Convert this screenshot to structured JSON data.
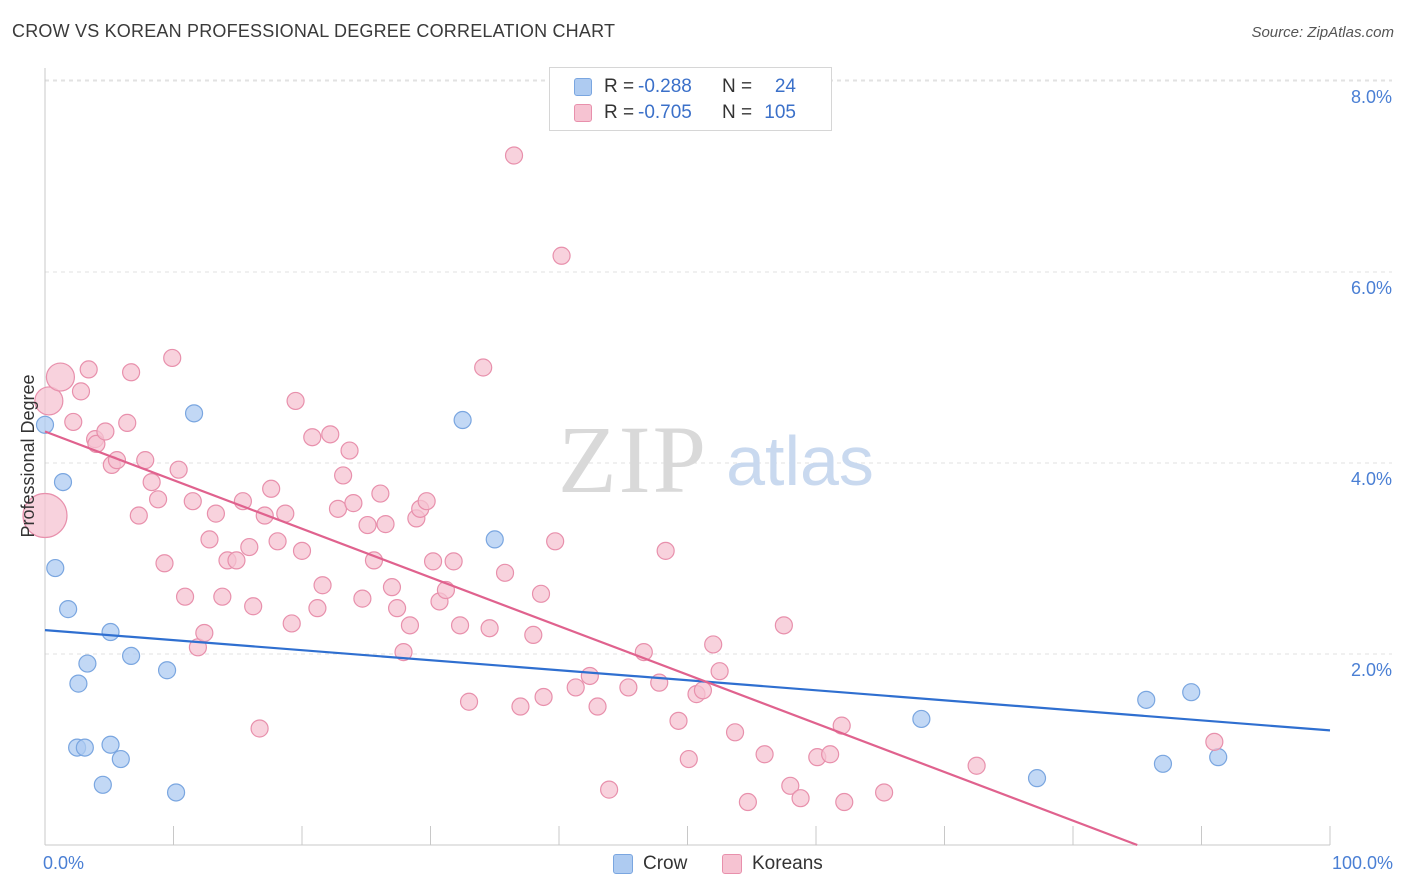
{
  "header": {
    "title": "CROW VS KOREAN PROFESSIONAL DEGREE CORRELATION CHART",
    "source": "Source: ZipAtlas.com"
  },
  "watermark": {
    "zip": "ZIP",
    "atlas": "atlas"
  },
  "legend": {
    "rows": [
      {
        "r_label": "R =",
        "r_value": "-0.288",
        "n_label": "N =",
        "n_value": "24"
      },
      {
        "r_label": "R =",
        "r_value": "-0.705",
        "n_label": "N =",
        "n_value": "105"
      }
    ]
  },
  "bottom_legend": {
    "crow": "Crow",
    "koreans": "Koreans"
  },
  "colors": {
    "crow_fill": "#aecbf1",
    "crow_stroke": "#7aa6e0",
    "crow_line": "#2f6fd0",
    "korean_fill": "#f6c3d2",
    "korean_stroke": "#e890ac",
    "korean_line": "#e0628e",
    "accent_text": "#4a7fd4"
  },
  "chart_data": {
    "type": "scatter",
    "title": "CROW VS KOREAN PROFESSIONAL DEGREE CORRELATION CHART",
    "xlabel": "",
    "ylabel": "Professional Degree",
    "xlim": [
      0,
      100
    ],
    "ylim": [
      0,
      8.2
    ],
    "x_tick_labels": [
      "0.0%",
      "100.0%"
    ],
    "y_ticks": [
      2,
      4,
      6,
      8
    ],
    "y_tick_labels": [
      "2.0%",
      "4.0%",
      "6.0%",
      "8.0%"
    ],
    "grid": "horizontal dashed",
    "legend_position": "top-center",
    "series": [
      {
        "name": "Crow",
        "r": -0.288,
        "n": 24,
        "trend": {
          "x": [
            0,
            100
          ],
          "y": [
            2.25,
            1.2
          ]
        },
        "points": [
          {
            "x": 0,
            "y": 4.4
          },
          {
            "x": 0.8,
            "y": 2.9
          },
          {
            "x": 1.4,
            "y": 3.8
          },
          {
            "x": 1.8,
            "y": 2.47
          },
          {
            "x": 2.5,
            "y": 1.02
          },
          {
            "x": 2.6,
            "y": 1.69
          },
          {
            "x": 3.1,
            "y": 1.02
          },
          {
            "x": 3.3,
            "y": 1.9
          },
          {
            "x": 4.5,
            "y": 0.63
          },
          {
            "x": 5.1,
            "y": 2.23
          },
          {
            "x": 5.1,
            "y": 1.05
          },
          {
            "x": 5.9,
            "y": 0.9
          },
          {
            "x": 6.7,
            "y": 1.98
          },
          {
            "x": 9.5,
            "y": 1.83
          },
          {
            "x": 10.2,
            "y": 0.55
          },
          {
            "x": 11.6,
            "y": 4.52
          },
          {
            "x": 32.5,
            "y": 4.45
          },
          {
            "x": 35.0,
            "y": 3.2
          },
          {
            "x": 68.2,
            "y": 1.32
          },
          {
            "x": 77.2,
            "y": 0.7
          },
          {
            "x": 85.7,
            "y": 1.52
          },
          {
            "x": 87.0,
            "y": 0.85
          },
          {
            "x": 89.2,
            "y": 1.6
          },
          {
            "x": 91.3,
            "y": 0.92
          }
        ]
      },
      {
        "name": "Koreans",
        "r": -0.705,
        "n": 105,
        "trend": {
          "x": [
            0,
            85
          ],
          "y": [
            4.33,
            0
          ]
        },
        "points": [
          {
            "x": 0.3,
            "y": 4.65,
            "big": 1
          },
          {
            "x": 1.2,
            "y": 4.9,
            "big": 1
          },
          {
            "x": 0,
            "y": 3.45,
            "big": 2
          },
          {
            "x": 2.2,
            "y": 4.43
          },
          {
            "x": 2.8,
            "y": 4.75
          },
          {
            "x": 3.4,
            "y": 4.98
          },
          {
            "x": 3.9,
            "y": 4.25
          },
          {
            "x": 4.0,
            "y": 4.2
          },
          {
            "x": 4.7,
            "y": 4.33
          },
          {
            "x": 5.2,
            "y": 3.98
          },
          {
            "x": 5.6,
            "y": 4.03
          },
          {
            "x": 6.4,
            "y": 4.42
          },
          {
            "x": 6.7,
            "y": 4.95
          },
          {
            "x": 7.3,
            "y": 3.45
          },
          {
            "x": 7.8,
            "y": 4.03
          },
          {
            "x": 8.3,
            "y": 3.8
          },
          {
            "x": 8.8,
            "y": 3.62
          },
          {
            "x": 9.3,
            "y": 2.95
          },
          {
            "x": 9.9,
            "y": 5.1
          },
          {
            "x": 10.4,
            "y": 3.93
          },
          {
            "x": 10.9,
            "y": 2.6
          },
          {
            "x": 11.5,
            "y": 3.6
          },
          {
            "x": 11.9,
            "y": 2.07
          },
          {
            "x": 12.4,
            "y": 2.22
          },
          {
            "x": 12.8,
            "y": 3.2
          },
          {
            "x": 13.3,
            "y": 3.47
          },
          {
            "x": 13.8,
            "y": 2.6
          },
          {
            "x": 14.2,
            "y": 2.98
          },
          {
            "x": 14.9,
            "y": 2.98
          },
          {
            "x": 15.4,
            "y": 3.6
          },
          {
            "x": 15.9,
            "y": 3.12
          },
          {
            "x": 16.2,
            "y": 2.5
          },
          {
            "x": 16.7,
            "y": 1.22
          },
          {
            "x": 17.1,
            "y": 3.45
          },
          {
            "x": 17.6,
            "y": 3.73
          },
          {
            "x": 18.1,
            "y": 3.18
          },
          {
            "x": 18.7,
            "y": 3.47
          },
          {
            "x": 19.2,
            "y": 2.32
          },
          {
            "x": 19.5,
            "y": 4.65
          },
          {
            "x": 20.0,
            "y": 3.08
          },
          {
            "x": 20.8,
            "y": 4.27
          },
          {
            "x": 21.2,
            "y": 2.48
          },
          {
            "x": 21.6,
            "y": 2.72
          },
          {
            "x": 22.2,
            "y": 4.3
          },
          {
            "x": 22.8,
            "y": 3.52
          },
          {
            "x": 23.2,
            "y": 3.87
          },
          {
            "x": 23.7,
            "y": 4.13
          },
          {
            "x": 24.0,
            "y": 3.58
          },
          {
            "x": 24.7,
            "y": 2.58
          },
          {
            "x": 25.1,
            "y": 3.35
          },
          {
            "x": 25.6,
            "y": 2.98
          },
          {
            "x": 26.1,
            "y": 3.68
          },
          {
            "x": 26.5,
            "y": 3.36
          },
          {
            "x": 27.0,
            "y": 2.7
          },
          {
            "x": 27.4,
            "y": 2.48
          },
          {
            "x": 27.9,
            "y": 2.02
          },
          {
            "x": 28.4,
            "y": 2.3
          },
          {
            "x": 28.9,
            "y": 3.42
          },
          {
            "x": 29.2,
            "y": 3.52
          },
          {
            "x": 29.7,
            "y": 3.6
          },
          {
            "x": 30.2,
            "y": 2.97
          },
          {
            "x": 30.7,
            "y": 2.55
          },
          {
            "x": 31.2,
            "y": 2.67
          },
          {
            "x": 31.8,
            "y": 2.97
          },
          {
            "x": 32.3,
            "y": 2.3
          },
          {
            "x": 33.0,
            "y": 1.5
          },
          {
            "x": 34.1,
            "y": 5.0
          },
          {
            "x": 34.6,
            "y": 2.27
          },
          {
            "x": 35.8,
            "y": 2.85
          },
          {
            "x": 36.5,
            "y": 7.22
          },
          {
            "x": 37.0,
            "y": 1.45
          },
          {
            "x": 38.0,
            "y": 2.2
          },
          {
            "x": 38.6,
            "y": 2.63
          },
          {
            "x": 38.8,
            "y": 1.55
          },
          {
            "x": 39.7,
            "y": 3.18
          },
          {
            "x": 40.2,
            "y": 6.17
          },
          {
            "x": 41.3,
            "y": 1.65
          },
          {
            "x": 42.4,
            "y": 1.77
          },
          {
            "x": 43.0,
            "y": 1.45
          },
          {
            "x": 43.9,
            "y": 0.58
          },
          {
            "x": 45.4,
            "y": 1.65
          },
          {
            "x": 46.6,
            "y": 2.02
          },
          {
            "x": 47.8,
            "y": 1.7
          },
          {
            "x": 48.3,
            "y": 3.08
          },
          {
            "x": 49.3,
            "y": 1.3
          },
          {
            "x": 50.1,
            "y": 0.9
          },
          {
            "x": 50.7,
            "y": 1.58
          },
          {
            "x": 51.2,
            "y": 1.62
          },
          {
            "x": 52.0,
            "y": 2.1
          },
          {
            "x": 52.5,
            "y": 1.82
          },
          {
            "x": 53.7,
            "y": 1.18
          },
          {
            "x": 54.7,
            "y": 0.45
          },
          {
            "x": 56.0,
            "y": 0.95
          },
          {
            "x": 57.5,
            "y": 2.3
          },
          {
            "x": 58.0,
            "y": 0.62
          },
          {
            "x": 58.8,
            "y": 0.49
          },
          {
            "x": 60.1,
            "y": 0.92
          },
          {
            "x": 61.1,
            "y": 0.95
          },
          {
            "x": 62.0,
            "y": 1.25
          },
          {
            "x": 62.2,
            "y": 0.45
          },
          {
            "x": 65.3,
            "y": 0.55
          },
          {
            "x": 72.5,
            "y": 0.83
          },
          {
            "x": 91.0,
            "y": 1.08
          }
        ]
      }
    ]
  }
}
